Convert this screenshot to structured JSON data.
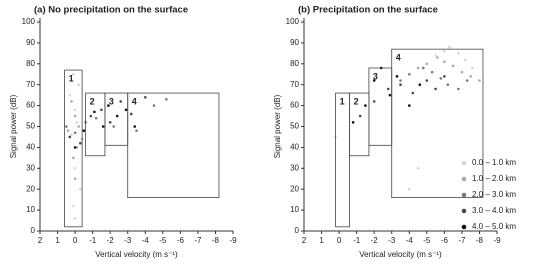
{
  "chart_data": [
    {
      "type": "scatter",
      "title": "(a) No precipitation on the surface",
      "x_label": "Vertical velocity (m s⁻¹)",
      "y_label": "Signal power (dB)",
      "xlim": [
        2,
        -9
      ],
      "ylim": [
        0,
        100
      ],
      "xticks": [
        2,
        1,
        0,
        -1,
        -2,
        -3,
        -4,
        -5,
        -6,
        -7,
        -8,
        -9
      ],
      "yticks": [
        0,
        10,
        20,
        30,
        40,
        50,
        60,
        70,
        80,
        90,
        100
      ],
      "series": [
        {
          "color": "#d6d6d6",
          "x": [
            0.1,
            -0.2,
            0.3,
            0.0,
            -0.1,
            0.2,
            0.0,
            -0.3,
            0.1,
            0.0
          ],
          "y": [
            75,
            70,
            65,
            58,
            52,
            46,
            30,
            20,
            12,
            6
          ]
        },
        {
          "color": "#aaaaaa",
          "x": [
            0.2,
            0.0,
            -0.2,
            0.4,
            -0.4,
            -0.1,
            0.1,
            0.0
          ],
          "y": [
            62,
            55,
            50,
            48,
            44,
            40,
            35,
            25
          ]
        },
        {
          "color": "#7a7a7a",
          "x": [
            0.5,
            0.0,
            -0.6,
            -1.2,
            -2.2,
            -3.5,
            -4.5,
            -5.2
          ],
          "y": [
            50,
            47,
            52,
            54,
            50,
            48,
            60,
            63
          ]
        },
        {
          "color": "#4a4a4a",
          "x": [
            0.3,
            -0.3,
            -0.9,
            -1.5,
            -2.0,
            -2.6,
            -3.2,
            -4.0
          ],
          "y": [
            45,
            42,
            55,
            58,
            52,
            62,
            56,
            64
          ]
        },
        {
          "color": "#111111",
          "x": [
            0.0,
            -0.5,
            -1.1,
            -1.6,
            -1.9,
            -2.4,
            -2.9,
            -3.4
          ],
          "y": [
            40,
            48,
            57,
            50,
            60,
            55,
            58,
            50
          ]
        }
      ],
      "regions": [
        {
          "label": "1",
          "x": [
            0.6,
            -0.4
          ],
          "y": [
            2,
            77
          ]
        },
        {
          "label": "2",
          "x": [
            -0.6,
            -1.7
          ],
          "y": [
            36,
            66
          ]
        },
        {
          "label": "3",
          "x": [
            -1.7,
            -3.0
          ],
          "y": [
            41,
            66
          ]
        },
        {
          "label": "4",
          "x": [
            -3.0,
            -8.2
          ],
          "y": [
            16,
            66
          ]
        }
      ]
    },
    {
      "type": "scatter",
      "title": "(b) Precipitation on the surface",
      "x_label": "Vertical velocity (m s⁻¹)",
      "y_label": "Signal power (dB)",
      "xlim": [
        2,
        -9
      ],
      "ylim": [
        0,
        100
      ],
      "xticks": [
        2,
        1,
        0,
        -1,
        -2,
        -3,
        -4,
        -5,
        -6,
        -7,
        -8,
        -9
      ],
      "yticks": [
        0,
        10,
        20,
        30,
        40,
        50,
        60,
        70,
        80,
        90,
        100
      ],
      "series": [
        {
          "name": "0.0 – 1.0 km",
          "color": "#d6d6d6",
          "x": [
            -5.0,
            -5.5,
            -6.0,
            -6.3,
            -6.8,
            -7.2,
            -7.6,
            -4.5,
            -4.0,
            0.2
          ],
          "y": [
            80,
            84,
            86,
            88,
            85,
            82,
            78,
            30,
            20,
            45
          ]
        },
        {
          "name": "1.0 – 2.0 km",
          "color": "#aaaaaa",
          "x": [
            -4.5,
            -5.0,
            -5.6,
            -6.0,
            -6.5,
            -7.0,
            -7.5,
            -8.0
          ],
          "y": [
            78,
            80,
            83,
            81,
            79,
            76,
            74,
            72
          ]
        },
        {
          "name": "2.0 – 3.0 km",
          "color": "#7a7a7a",
          "x": [
            -3.5,
            -4.0,
            -4.8,
            -5.3,
            -5.8,
            -6.2,
            -6.8,
            -7.3
          ],
          "y": [
            72,
            75,
            78,
            76,
            73,
            70,
            68,
            72
          ]
        },
        {
          "name": "3.0 – 4.0 km",
          "color": "#4a4a4a",
          "x": [
            -1.2,
            -2.0,
            -2.8,
            -3.5,
            -4.2,
            -5.0,
            -5.5,
            -6.0
          ],
          "y": [
            55,
            62,
            68,
            70,
            66,
            72,
            68,
            74
          ]
        },
        {
          "name": "4.0 – 5.0 km",
          "color": "#111111",
          "x": [
            -0.8,
            -1.5,
            -2.0,
            -2.4,
            -2.9,
            -3.3,
            -4.0,
            -4.6
          ],
          "y": [
            52,
            60,
            72,
            78,
            65,
            74,
            60,
            70
          ]
        }
      ],
      "regions": [
        {
          "label": "1",
          "x": [
            0.2,
            -0.6
          ],
          "y": [
            2,
            66
          ]
        },
        {
          "label": "2",
          "x": [
            -0.6,
            -1.7
          ],
          "y": [
            36,
            66
          ]
        },
        {
          "label": "3",
          "x": [
            -1.7,
            -3.0
          ],
          "y": [
            41,
            78
          ]
        },
        {
          "label": "4",
          "x": [
            -3.0,
            -8.2
          ],
          "y": [
            16,
            87
          ]
        }
      ]
    }
  ]
}
